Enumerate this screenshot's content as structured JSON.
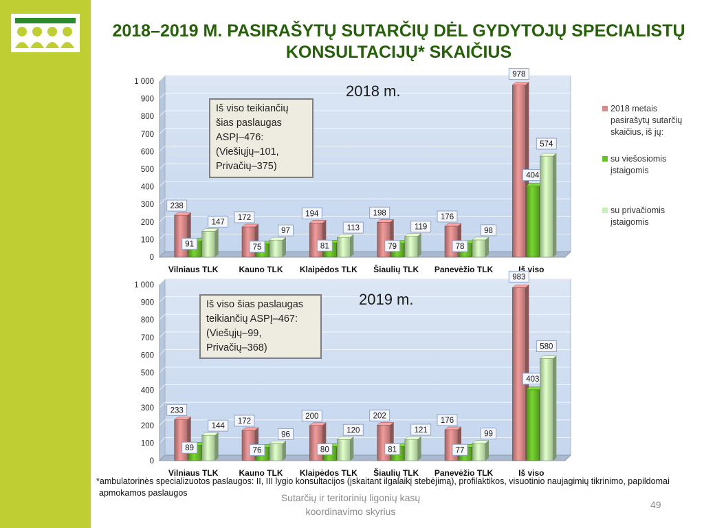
{
  "slide": {
    "title": "2018–2019 M. PASIRAŠYTŲ SUTARČIŲ DĖL GYDYTOJŲ SPECIALISTŲ KONSULTACIJŲ* SKAIČIUS",
    "footnote_line1": "*ambulatorinės specializuotos paslaugos: II, III lygio konsultacijos (įskaitant ilgalaikį stebėjimą), profilaktikos, visuotinio naujagimių tikrinimo, papildomai",
    "footnote_line2": "apmokamos paslaugos",
    "footer_line1": "Sutarčių ir teritorinių ligonių kasų",
    "footer_line2": "koordinavimo skyrius",
    "page_number": "49"
  },
  "legend": {
    "placement": "right",
    "items": [
      {
        "label": "2018 metais pasirašytų sutarčių skaičius, iš jų:",
        "color": "#d98a8a"
      },
      {
        "label": "su viešosiomis įstaigomis",
        "color": "#6abf2a"
      },
      {
        "label": "su privačiomis įstaigomis",
        "color": "#c9f0b4"
      }
    ]
  },
  "chart_data": [
    {
      "type": "bar",
      "title": "2018 m.",
      "callout": [
        "Iš viso teikiančių",
        "šias paslaugas",
        "ASPĮ–476:",
        "(Viešiųjų–101,",
        "Privačių–375)"
      ],
      "categories": [
        "Vilniaus TLK",
        "Kauno TLK",
        "Klaipėdos TLK",
        "Šiaulių TLK",
        "Panevėžio TLK",
        "Iš viso"
      ],
      "series": [
        {
          "name": "2018 metais pasirašytų sutarčių skaičius, iš jų:",
          "values": [
            238,
            172,
            194,
            198,
            176,
            978
          ]
        },
        {
          "name": "su viešosiomis įstaigomis",
          "values": [
            91,
            75,
            81,
            79,
            78,
            404
          ]
        },
        {
          "name": "su privačiomis įstaigomis",
          "values": [
            147,
            97,
            113,
            119,
            98,
            574
          ]
        }
      ],
      "ylim": [
        0,
        1000
      ],
      "yticks": [
        "0",
        "100",
        "200",
        "300",
        "400",
        "500",
        "600",
        "700",
        "800",
        "900",
        "1 000"
      ],
      "grid": true
    },
    {
      "type": "bar",
      "title": "2019 m.",
      "callout": [
        "Iš viso šias paslaugas",
        "teikiančių ASPĮ–467:",
        "(Viešųjų–99,",
        "Privačių–368)"
      ],
      "categories": [
        "Vilniaus TLK",
        "Kauno TLK",
        "Klaipėdos TLK",
        "Šiaulių TLK",
        "Panevėžio TLK",
        "Iš viso"
      ],
      "series": [
        {
          "name": "2018 metais pasirašytų sutarčių skaičius, iš jų:",
          "values": [
            233,
            172,
            200,
            202,
            176,
            983
          ]
        },
        {
          "name": "su viešosiomis įstaigomis",
          "values": [
            89,
            76,
            80,
            81,
            77,
            403
          ]
        },
        {
          "name": "su privačiomis įstaigomis",
          "values": [
            144,
            96,
            120,
            121,
            99,
            580
          ]
        }
      ],
      "ylim": [
        0,
        1000
      ],
      "yticks": [
        "0",
        "100",
        "200",
        "300",
        "400",
        "500",
        "600",
        "700",
        "800",
        "900",
        "1 000"
      ],
      "grid": true
    }
  ]
}
